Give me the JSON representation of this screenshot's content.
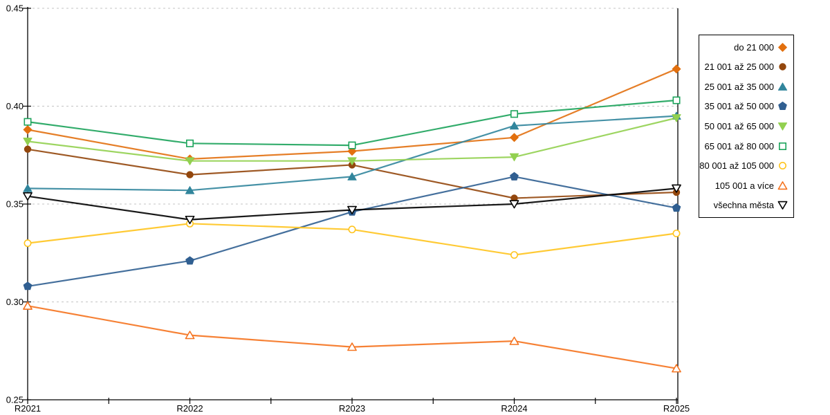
{
  "page": {
    "background": "#ffffff"
  },
  "chart_data": {
    "type": "line",
    "title": "",
    "xlabel": "",
    "ylabel": "",
    "x_categories": [
      "R2021",
      "R2022",
      "R2023",
      "R2024",
      "R2025"
    ],
    "ylim": [
      0.25,
      0.45
    ],
    "y_ticks": [
      {
        "value": 0.25,
        "label": "0.25"
      },
      {
        "value": 0.3,
        "label": "0.30"
      },
      {
        "value": 0.35,
        "label": "0.35"
      },
      {
        "value": 0.4,
        "label": "0.40"
      },
      {
        "value": 0.45,
        "label": "0.45"
      }
    ],
    "grid": "horizontal-dashed",
    "grid_color": "#c3c3c3",
    "axis_color": "#000000",
    "legend_position": "right-outside",
    "series": [
      {
        "name": "do 21 000",
        "marker": "diamond",
        "marker_fill": "solid",
        "color": "#E2700F",
        "values": [
          0.388,
          0.373,
          0.377,
          0.384,
          0.419
        ]
      },
      {
        "name": "21 001 až 25 000",
        "marker": "circle",
        "marker_fill": "solid",
        "color": "#93470D",
        "values": [
          0.378,
          0.365,
          0.37,
          0.353,
          0.356
        ]
      },
      {
        "name": "25 001 až 35 000",
        "marker": "triangle-up",
        "marker_fill": "solid",
        "color": "#31859C",
        "values": [
          0.358,
          0.357,
          0.364,
          0.39,
          0.395
        ]
      },
      {
        "name": "35 001 až 50 000",
        "marker": "pentagon",
        "marker_fill": "solid",
        "color": "#305F91",
        "values": [
          0.308,
          0.321,
          0.346,
          0.364,
          0.348
        ]
      },
      {
        "name": "50 001 až 65 000",
        "marker": "triangle-down",
        "marker_fill": "solid",
        "color": "#92D050",
        "values": [
          0.382,
          0.372,
          0.372,
          0.374,
          0.394
        ]
      },
      {
        "name": "65 001 až 80 000",
        "marker": "square",
        "marker_fill": "open",
        "color": "#1CA35B",
        "values": [
          0.392,
          0.381,
          0.38,
          0.396,
          0.403
        ]
      },
      {
        "name": "80 001 až 105 000",
        "marker": "circle",
        "marker_fill": "open",
        "color": "#FFC41E",
        "values": [
          0.33,
          0.34,
          0.337,
          0.324,
          0.335
        ]
      },
      {
        "name": "105 001 a více",
        "marker": "triangle-up",
        "marker_fill": "open",
        "color": "#F5731F",
        "values": [
          0.298,
          0.283,
          0.277,
          0.28,
          0.266
        ]
      },
      {
        "name": "všechna města",
        "marker": "triangle-down",
        "marker_fill": "open",
        "color": "#000000",
        "values": [
          0.354,
          0.342,
          0.347,
          0.35,
          0.358
        ]
      }
    ]
  }
}
